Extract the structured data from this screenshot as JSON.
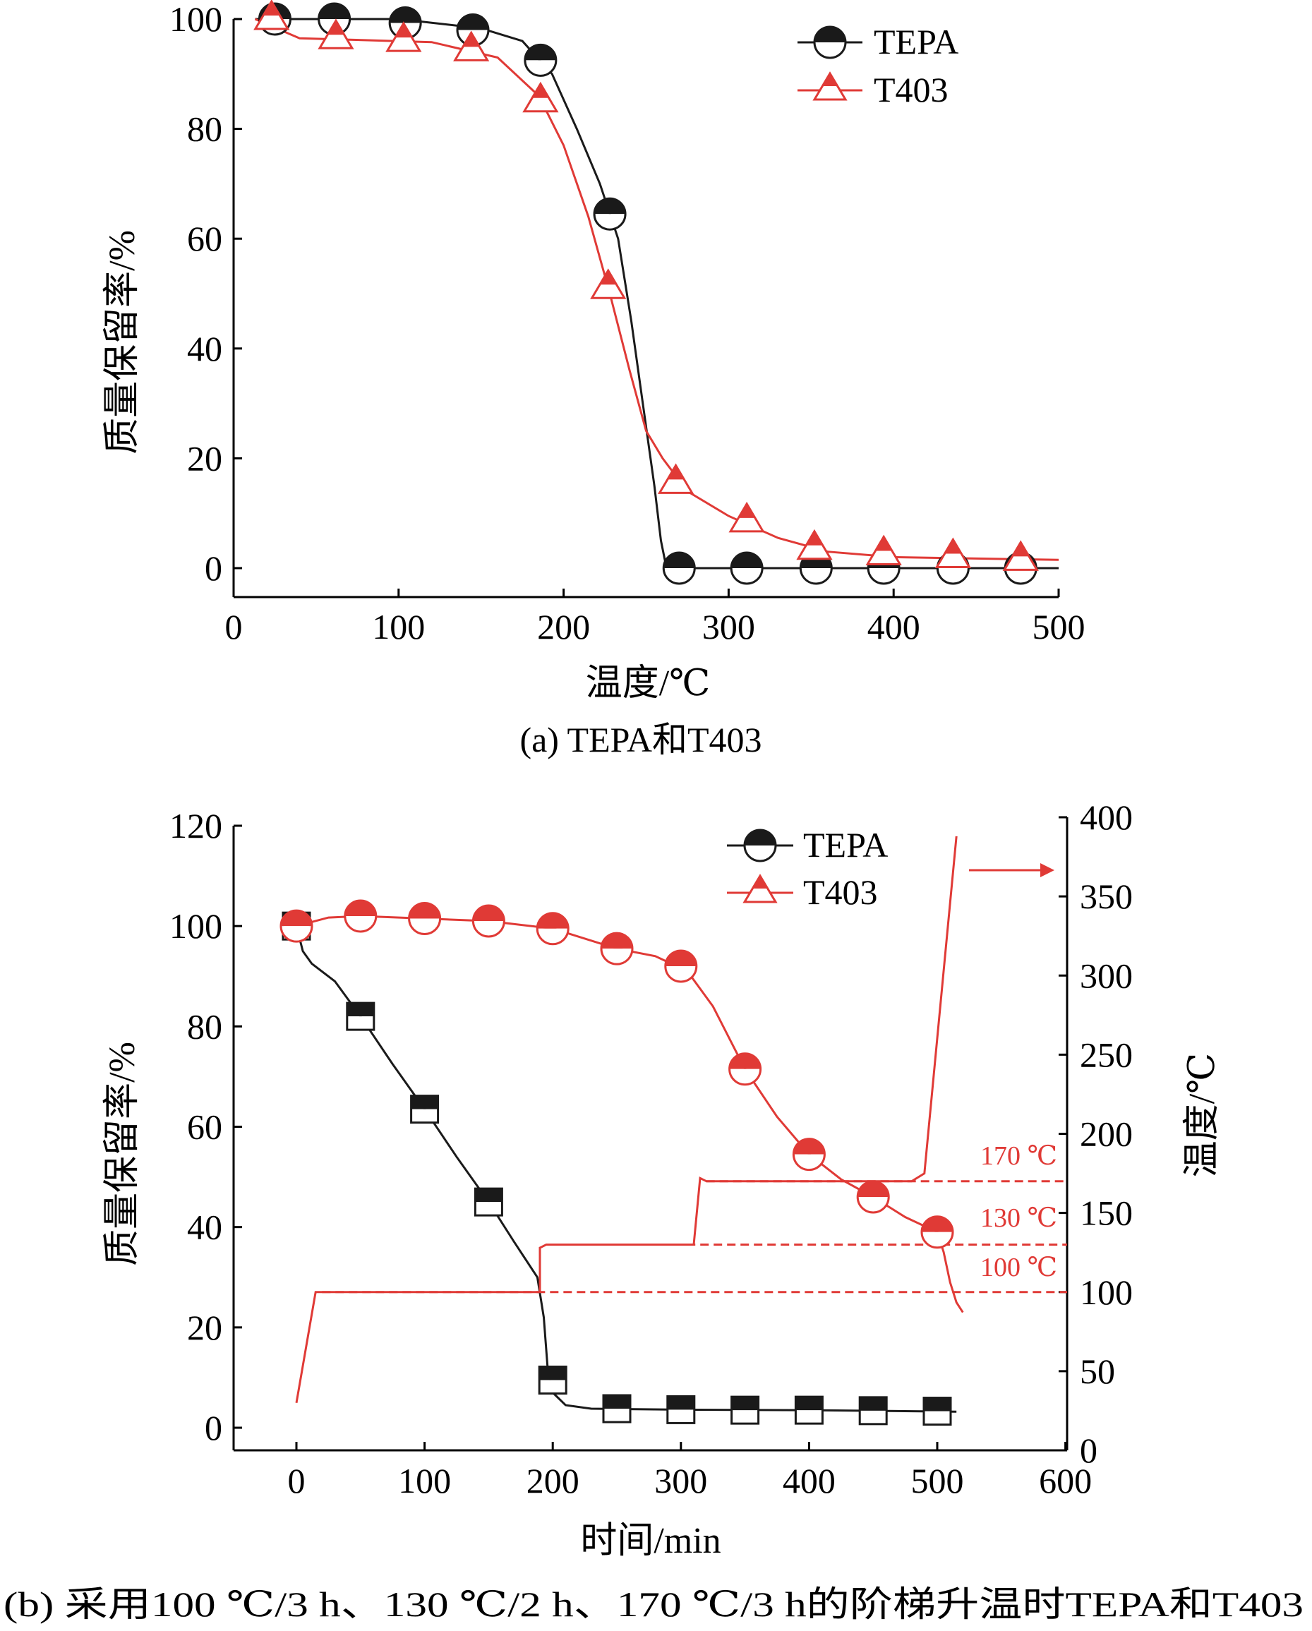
{
  "colors": {
    "tepa": "#1a1a1a",
    "t403": "#e03a36",
    "axis": "#000000"
  },
  "chart_data": [
    {
      "type": "line",
      "caption": "(a) TEPA和T403",
      "xlabel": "温度/℃",
      "ylabel": "质量保留率/%",
      "xlim": [
        0,
        500
      ],
      "ylim": [
        0,
        100
      ],
      "xticks": [
        "0",
        "100",
        "200",
        "300",
        "400",
        "500"
      ],
      "yticks": [
        "0",
        "20",
        "40",
        "60",
        "80",
        "100"
      ],
      "legend": {
        "position": "top-right",
        "entries": [
          "TEPA",
          "T403"
        ]
      },
      "series": [
        {
          "name": "TEPA",
          "marker": "circle",
          "color": "#1a1a1a",
          "points": [
            [
              25,
              100
            ],
            [
              61,
              100
            ],
            [
              104,
              99.3
            ],
            [
              145,
              98
            ],
            [
              186,
              92.5
            ],
            [
              228,
              64.5
            ],
            [
              270,
              0
            ],
            [
              311,
              0
            ],
            [
              353,
              0
            ],
            [
              394,
              0
            ],
            [
              436,
              0
            ],
            [
              477,
              0
            ]
          ],
          "curve": [
            [
              13,
              100
            ],
            [
              100,
              100
            ],
            [
              150,
              98.3
            ],
            [
              175,
              96
            ],
            [
              193,
              90
            ],
            [
              208,
              80
            ],
            [
              222,
              70
            ],
            [
              233,
              60
            ],
            [
              241,
              45
            ],
            [
              248,
              30
            ],
            [
              255,
              15
            ],
            [
              259,
              5
            ],
            [
              262,
              0.5
            ],
            [
              265,
              0
            ],
            [
              500,
              0
            ]
          ]
        },
        {
          "name": "T403",
          "marker": "triangle",
          "color": "#e03a36",
          "points": [
            [
              23,
              100
            ],
            [
              62,
              96.5
            ],
            [
              103,
              96
            ],
            [
              144,
              94.3
            ],
            [
              186,
              85
            ],
            [
              227,
              51
            ],
            [
              268,
              15.5
            ],
            [
              311,
              8.5
            ],
            [
              352,
              3.5
            ],
            [
              394,
              2.5
            ],
            [
              436,
              2
            ],
            [
              477,
              1.5
            ]
          ],
          "curve": [
            [
              13,
              100
            ],
            [
              40,
              96.5
            ],
            [
              120,
              95.8
            ],
            [
              160,
              93
            ],
            [
              185,
              86
            ],
            [
              200,
              77
            ],
            [
              215,
              64
            ],
            [
              228,
              50
            ],
            [
              240,
              36
            ],
            [
              250,
              25
            ],
            [
              260,
              20
            ],
            [
              275,
              14
            ],
            [
              300,
              9.5
            ],
            [
              330,
              5.5
            ],
            [
              360,
              3
            ],
            [
              400,
              2
            ],
            [
              500,
              1.5
            ]
          ]
        }
      ]
    },
    {
      "type": "line",
      "caption": "(b) 采用100 ℃/3 h、130 ℃/2 h、170 ℃/3 h的阶梯升温时TEPA和T403",
      "xlabel": "时间/min",
      "ylabel": "质量保留率/%",
      "y2label": "温度/℃",
      "xlim": [
        -50,
        600
      ],
      "ylim": [
        0,
        120
      ],
      "y2lim": [
        0,
        400
      ],
      "xticks": [
        "0",
        "100",
        "200",
        "300",
        "400",
        "500",
        "600"
      ],
      "yticks": [
        "0",
        "20",
        "40",
        "60",
        "80",
        "100",
        "120"
      ],
      "y2ticks": [
        "0",
        "50",
        "100",
        "150",
        "200",
        "250",
        "300",
        "350",
        "400"
      ],
      "legend": {
        "position": "top-right",
        "entries": [
          "TEPA",
          "T403"
        ]
      },
      "series": [
        {
          "name": "TEPA",
          "marker": "square",
          "color": "#1a1a1a",
          "points": [
            [
              0,
              100
            ],
            [
              50,
              82
            ],
            [
              100,
              63.5
            ],
            [
              150,
              45
            ],
            [
              200,
              9.5
            ],
            [
              250,
              3.8
            ],
            [
              300,
              3.6
            ],
            [
              350,
              3.5
            ],
            [
              400,
              3.5
            ],
            [
              450,
              3.4
            ],
            [
              500,
              3.3
            ]
          ],
          "curve": [
            [
              0,
              100
            ],
            [
              5,
              95
            ],
            [
              12,
              92.5
            ],
            [
              30,
              89
            ],
            [
              50,
              82
            ],
            [
              75,
              72.5
            ],
            [
              100,
              63.5
            ],
            [
              125,
              54
            ],
            [
              150,
              45
            ],
            [
              170,
              37
            ],
            [
              188,
              30
            ],
            [
              193,
              22
            ],
            [
              196,
              12
            ],
            [
              200,
              7
            ],
            [
              210,
              4.5
            ],
            [
              230,
              3.8
            ],
            [
              300,
              3.6
            ],
            [
              400,
              3.5
            ],
            [
              515,
              3.2
            ]
          ]
        },
        {
          "name": "T403",
          "marker": "circle",
          "color": "#e03a36",
          "points": [
            [
              0,
              100
            ],
            [
              50,
              102
            ],
            [
              100,
              101.5
            ],
            [
              150,
              101
            ],
            [
              200,
              99.5
            ],
            [
              250,
              95.5
            ],
            [
              300,
              92
            ],
            [
              350,
              71.5
            ],
            [
              400,
              54.5
            ],
            [
              450,
              46
            ],
            [
              500,
              39
            ]
          ],
          "curve": [
            [
              0,
              100
            ],
            [
              25,
              101.7
            ],
            [
              50,
              102
            ],
            [
              100,
              101.5
            ],
            [
              150,
              101
            ],
            [
              200,
              99.5
            ],
            [
              250,
              95.5
            ],
            [
              280,
              94
            ],
            [
              305,
              91
            ],
            [
              325,
              84
            ],
            [
              350,
              71.5
            ],
            [
              375,
              62
            ],
            [
              400,
              54.5
            ],
            [
              425,
              49.5
            ],
            [
              450,
              46
            ],
            [
              475,
              42
            ],
            [
              500,
              39
            ],
            [
              505,
              35
            ],
            [
              510,
              29
            ],
            [
              515,
              25
            ],
            [
              520,
              23
            ]
          ]
        },
        {
          "name": "温度",
          "axis": "right",
          "color": "#e03a36",
          "curve": [
            [
              0,
              30
            ],
            [
              15,
              100
            ],
            [
              190,
              100
            ],
            [
              190,
              128
            ],
            [
              195,
              130
            ],
            [
              310,
              130
            ],
            [
              315,
              172
            ],
            [
              320,
              170
            ],
            [
              480,
              170
            ],
            [
              490,
              175
            ],
            [
              515,
              388
            ]
          ]
        }
      ],
      "reference_lines": [
        {
          "label": "170 ℃",
          "value": 170
        },
        {
          "label": "130 ℃",
          "value": 130
        },
        {
          "label": "100 ℃",
          "value": 100
        }
      ]
    }
  ]
}
